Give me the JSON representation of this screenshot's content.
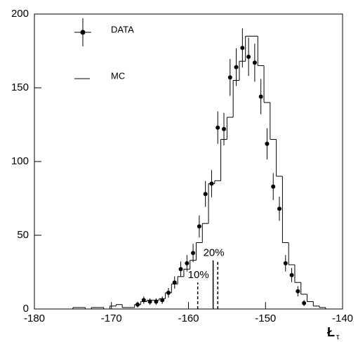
{
  "chart_data": {
    "type": "histogram",
    "xlabel": "Ł",
    "xlabel_sub": "τ",
    "xlim": [
      -180,
      -140
    ],
    "xticks": [
      -180,
      -170,
      -160,
      -150,
      -140
    ],
    "ylim": [
      0,
      200
    ],
    "yticks": [
      0,
      50,
      100,
      150,
      200
    ],
    "series": [
      {
        "name": "DATA",
        "type": "errorbar",
        "color": "#000000",
        "x": [
          -166.6,
          -165.8,
          -165.0,
          -164.2,
          -163.4,
          -162.6,
          -161.8,
          -161.0,
          -160.2,
          -159.4,
          -158.6,
          -157.8,
          -157.0,
          -156.2,
          -155.4,
          -154.6,
          -153.8,
          -153.0,
          -152.2,
          -151.4,
          -150.6,
          -149.8,
          -149.0,
          -148.2,
          -147.4,
          -146.6,
          -145.8,
          -145.0
        ],
        "values": [
          3,
          6,
          5,
          5,
          6,
          11,
          18,
          27,
          31,
          38,
          56,
          78,
          85,
          123,
          122,
          157,
          164,
          177,
          171,
          167,
          144,
          112,
          83,
          68,
          31,
          23,
          12,
          4
        ],
        "errors": [
          2,
          2.5,
          2.2,
          2.2,
          2.5,
          3.3,
          4.2,
          5.2,
          5.6,
          6.2,
          7.5,
          8.8,
          9.2,
          11,
          11,
          12.5,
          12.8,
          13.3,
          13,
          12.9,
          12,
          10.6,
          9.1,
          8.2,
          5.6,
          4.8,
          3.5,
          2
        ]
      },
      {
        "name": "MC",
        "type": "step",
        "color": "#000000",
        "bins": [
          -175.0,
          -174.2,
          -173.4,
          -172.6,
          -171.8,
          -171.0,
          -170.2,
          -169.4,
          -168.6,
          -167.8,
          -167.0,
          -166.2,
          -165.4,
          -164.6,
          -163.8,
          -163.0,
          -162.2,
          -161.4,
          -160.6,
          -159.8,
          -159.0,
          -158.2,
          -157.4,
          -156.6,
          -155.8,
          -155.0,
          -154.2,
          -153.4,
          -152.6,
          -151.8,
          -151.0,
          -150.2,
          -149.4,
          -148.6,
          -147.8,
          -147.0,
          -146.2,
          -145.4,
          -144.6,
          -143.8,
          -143.0,
          -142.2
        ],
        "values": [
          1,
          1,
          0,
          1,
          1,
          0,
          2,
          3,
          1,
          1,
          3,
          5,
          6,
          6,
          7,
          11,
          17,
          22,
          27,
          33,
          45,
          58,
          85,
          87,
          115,
          130,
          155,
          168,
          185,
          185,
          165,
          140,
          115,
          90,
          45,
          30,
          18,
          10,
          5,
          2,
          1
        ]
      }
    ],
    "markers": [
      {
        "label": "10%",
        "lines": [
          {
            "x": -158.8,
            "height": 18,
            "dashed": true
          }
        ]
      },
      {
        "label": "20%",
        "lines": [
          {
            "x": -156.8,
            "height": 33,
            "dashed": false
          },
          {
            "x": -156.2,
            "height": 33,
            "dashed": true
          }
        ]
      }
    ]
  }
}
